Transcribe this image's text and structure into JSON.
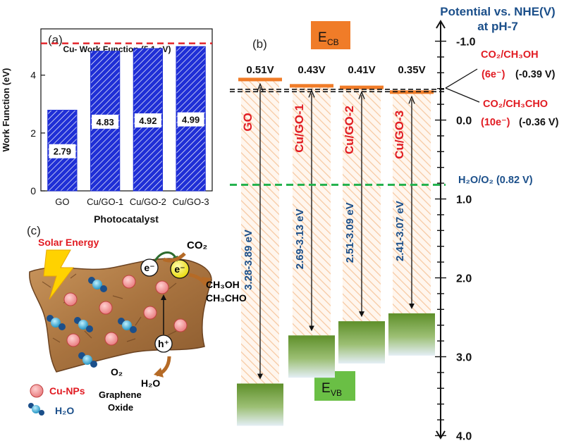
{
  "chart_data": [
    {
      "type": "bar",
      "panel_label": "(a)",
      "categories": [
        "GO",
        "Cu/GO-1",
        "Cu/GO-2",
        "Cu/GO-3"
      ],
      "values": [
        2.79,
        4.83,
        4.92,
        4.99
      ],
      "xlabel": "Photocatalyst",
      "ylabel": "Work Function (eV)",
      "ylim": [
        0,
        5.6
      ],
      "yticks": [
        0,
        2,
        4
      ],
      "reference_line": {
        "value": 5.1,
        "label": "Cu- Work Function (5.1 eV)",
        "color": "#e11b22"
      },
      "bar_color": "#1f2fd6",
      "grid": false
    },
    {
      "type": "bar",
      "panel_label": "(b)",
      "axis_title": "Potential vs. NHE(V)",
      "axis_subtitle": "at pH-7",
      "ylim": [
        -1.4,
        4.5
      ],
      "yticks": [
        "-1.0",
        "0.0",
        "1.0",
        "2.0",
        "3.0",
        "4.0"
      ],
      "ecb_label": "CB",
      "evb_label": "VB",
      "series": [
        {
          "name": "GO",
          "cb": 0.51,
          "cb_label": "0.51V",
          "vb": 3.34,
          "gap": "3.28-3.89 eV"
        },
        {
          "name": "Cu/GO-1",
          "cb": 0.43,
          "cb_label": "0.43V",
          "vb": 2.73,
          "gap": "2.69-3.13 eV"
        },
        {
          "name": "Cu/GO-2",
          "cb": 0.41,
          "cb_label": "0.41V",
          "vb": 2.55,
          "gap": "2.51-3.09 eV"
        },
        {
          "name": "Cu/GO-3",
          "cb": 0.35,
          "cb_label": "0.35V",
          "vb": 2.45,
          "gap": "2.41-3.07 eV"
        }
      ],
      "redox_lines": [
        {
          "value": -0.39,
          "product": "CO₂/CH₃OH",
          "electrons": "(6e⁻)",
          "potential": "(-0.39 V)"
        },
        {
          "value": -0.36,
          "product": "CO₂/CH₃CHO",
          "electrons": "(10e⁻)",
          "potential": "(-0.36 V)"
        },
        {
          "value": 0.82,
          "label": "H₂O/O₂ (0.82 V)",
          "color": "#22b14c"
        }
      ],
      "colors": {
        "cb": "#f07c28",
        "vb": "#5e8f2a",
        "hatch": "#f6c79f",
        "sample_label": "#e11b22",
        "gap_label": "#1b4f8a"
      }
    }
  ],
  "schematic": {
    "panel_label": "(c)",
    "solar": "Solar Energy",
    "co2": "CO₂",
    "products": [
      "CH₃OH",
      "CH₃CHO"
    ],
    "electron": "e⁻",
    "hole": "h⁺",
    "o2": "O₂",
    "h2o": "H₂O",
    "support": [
      "Graphene",
      "Oxide"
    ],
    "legend": [
      {
        "label": "Cu-NPs",
        "color": "#e11b22"
      },
      {
        "label": "H₂O",
        "color": "#1b4f8a"
      }
    ]
  }
}
